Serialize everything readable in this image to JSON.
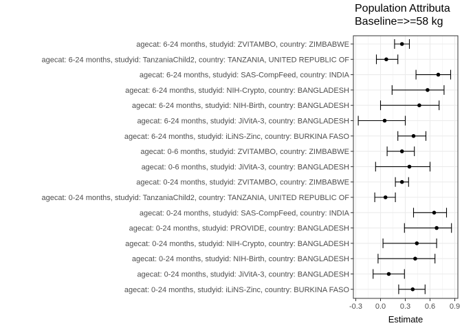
{
  "chart_data": {
    "type": "forest",
    "title_line1": "Population Attributa",
    "title_line2": "Baseline=>=58 kg",
    "xlabel": "Estimate",
    "ylabel": "",
    "xlim": [
      -0.3,
      0.9
    ],
    "x_ticks": [
      "-0.3",
      "0.0",
      "0.3",
      "0.6",
      "0.9"
    ],
    "grid": true,
    "categories": [
      "agecat: 6-24 months, studyid: ZVITAMBO, country: ZIMBABWE",
      "agecat: 6-24 months, studyid: TanzaniaChild2, country: TANZANIA, UNITED REPUBLIC OF",
      "agecat: 6-24 months, studyid: SAS-CompFeed, country: INDIA",
      "agecat: 6-24 months, studyid: NIH-Crypto, country: BANGLADESH",
      "agecat: 6-24 months, studyid: NIH-Birth, country: BANGLADESH",
      "agecat: 6-24 months, studyid: JiVitA-3, country: BANGLADESH",
      "agecat: 6-24 months, studyid: iLiNS-Zinc, country: BURKINA FASO",
      "agecat: 0-6 months, studyid: ZVITAMBO, country: ZIMBABWE",
      "agecat: 0-6 months, studyid: JiVitA-3, country: BANGLADESH",
      "agecat: 0-24 months, studyid: ZVITAMBO, country: ZIMBABWE",
      "agecat: 0-24 months, studyid: TanzaniaChild2, country: TANZANIA, UNITED REPUBLIC OF",
      "agecat: 0-24 months, studyid: SAS-CompFeed, country: INDIA",
      "agecat: 0-24 months, studyid: PROVIDE, country: BANGLADESH",
      "agecat: 0-24 months, studyid: NIH-Crypto, country: BANGLADESH",
      "agecat: 0-24 months, studyid: NIH-Birth, country: BANGLADESH",
      "agecat: 0-24 months, studyid: JiVitA-3, country: BANGLADESH",
      "agecat: 0-24 months, studyid: iLiNS-Zinc, country: BURKINA FASO"
    ],
    "estimates": [
      0.26,
      0.07,
      0.7,
      0.57,
      0.47,
      0.05,
      0.4,
      0.26,
      0.35,
      0.26,
      0.06,
      0.65,
      0.68,
      0.44,
      0.42,
      0.1,
      0.39
    ],
    "lower": [
      0.17,
      -0.05,
      0.43,
      0.14,
      0.0,
      -0.27,
      0.21,
      0.08,
      -0.06,
      0.18,
      -0.07,
      0.4,
      0.29,
      0.03,
      -0.03,
      -0.09,
      0.22
    ],
    "upper": [
      0.35,
      0.21,
      0.85,
      0.77,
      0.71,
      0.3,
      0.55,
      0.41,
      0.6,
      0.34,
      0.18,
      0.8,
      0.86,
      0.68,
      0.66,
      0.29,
      0.54
    ]
  }
}
